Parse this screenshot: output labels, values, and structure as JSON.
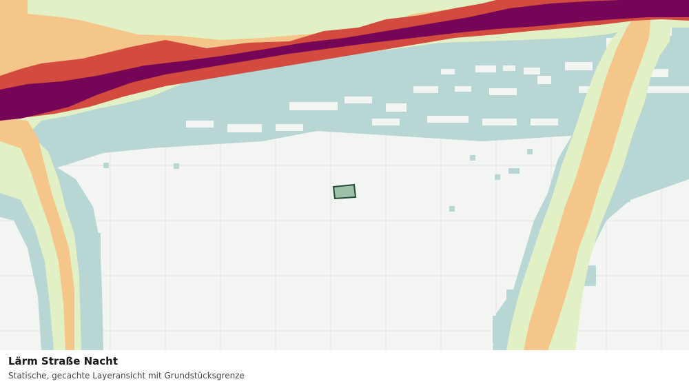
{
  "title": "Lärm Straße Nacht",
  "subtitle": "Statische, gecachte Layeransicht mit Grundstücksgrenze",
  "noise_colors": {
    "background": "#f3f5f3",
    "grid": "#e2e4e2",
    "level_1": "#b8d6d4",
    "level_2": "#e2f0c6",
    "level_3": "#f5c68a",
    "level_4": "#d24b3e",
    "level_5": "#750657"
  },
  "parcel": {
    "fill": "#9dc0a8",
    "stroke": "#1f4a33"
  }
}
